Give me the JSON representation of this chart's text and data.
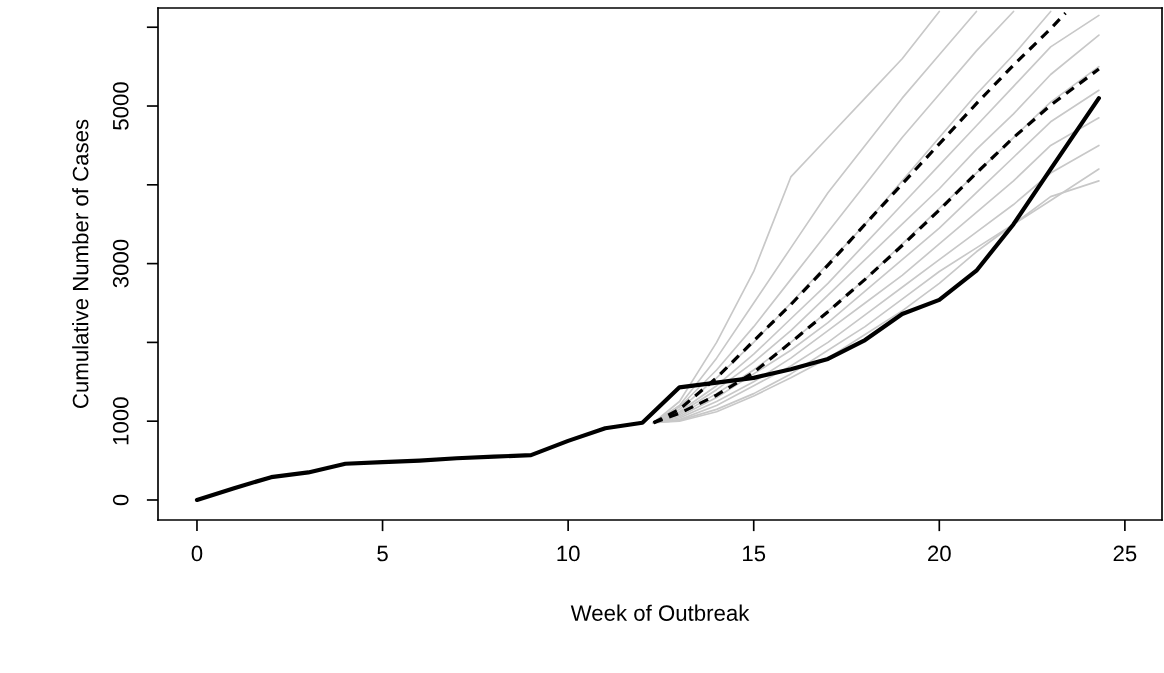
{
  "chart_data": {
    "type": "line",
    "xlabel": "Week of Outbreak",
    "ylabel": "Cumulative Number of Cases",
    "xlim": [
      -1.05,
      26.0
    ],
    "ylim": [
      -254,
      6244
    ],
    "xticks": [
      0,
      5,
      10,
      15,
      20,
      25
    ],
    "yticks": [
      0,
      1000,
      {
        "value": 2000,
        "label": null
      },
      3000,
      {
        "value": 4000,
        "label": null
      },
      5000,
      {
        "value": 6000,
        "label": null
      }
    ],
    "grid": false,
    "marker": "none",
    "series": [
      {
        "color": "#c8c8c8",
        "line_style": "solid",
        "x": [
          12.3,
          13,
          14,
          15,
          16,
          17,
          18,
          19,
          20
        ],
        "values": [
          980,
          1250,
          2000,
          2900,
          4100,
          4600,
          5100,
          5600,
          6200
        ]
      },
      {
        "color": "#c8c8c8",
        "line_style": "solid",
        "x": [
          12.3,
          13,
          14,
          15,
          16,
          17,
          18,
          19,
          20,
          21
        ],
        "values": [
          980,
          1200,
          1800,
          2500,
          3200,
          3900,
          4500,
          5100,
          5650,
          6200
        ]
      },
      {
        "color": "#c8c8c8",
        "line_style": "solid",
        "x": [
          12.3,
          13,
          14,
          15,
          16,
          17,
          18,
          19,
          20,
          21,
          22
        ],
        "values": [
          980,
          1180,
          1650,
          2200,
          2800,
          3400,
          4000,
          4600,
          5150,
          5700,
          6200
        ]
      },
      {
        "color": "#c8c8c8",
        "line_style": "solid",
        "x": [
          12.3,
          13,
          14,
          15,
          16,
          17,
          18,
          19,
          20,
          21,
          22,
          23
        ],
        "values": [
          980,
          1150,
          1550,
          2000,
          2500,
          3000,
          3500,
          4050,
          4600,
          5150,
          5650,
          6200
        ]
      },
      {
        "color": "#c8c8c8",
        "line_style": "solid",
        "x": [
          12.3,
          13,
          14,
          15,
          16,
          17,
          18,
          19,
          20,
          21,
          22,
          23,
          24.3
        ],
        "values": [
          980,
          1120,
          1450,
          1850,
          2300,
          2750,
          3250,
          3750,
          4250,
          4750,
          5250,
          5750,
          6150
        ]
      },
      {
        "color": "#c8c8c8",
        "line_style": "solid",
        "x": [
          12.3,
          13,
          14,
          15,
          16,
          17,
          18,
          19,
          20,
          21,
          22,
          23,
          24.3
        ],
        "values": [
          980,
          1100,
          1400,
          1750,
          2150,
          2600,
          3050,
          3500,
          3950,
          4450,
          4900,
          5400,
          5900
        ]
      },
      {
        "color": "#c8c8c8",
        "line_style": "solid",
        "x": [
          12.3,
          13,
          14,
          15,
          16,
          17,
          18,
          19,
          20,
          21,
          22,
          23,
          24.3
        ],
        "values": [
          980,
          1080,
          1350,
          1650,
          2000,
          2400,
          2800,
          3250,
          3700,
          4150,
          4600,
          5050,
          5500
        ]
      },
      {
        "color": "#c8c8c8",
        "line_style": "solid",
        "x": [
          12.3,
          13,
          14,
          15,
          16,
          17,
          18,
          19,
          20,
          21,
          22,
          23,
          24.3
        ],
        "values": [
          980,
          1060,
          1300,
          1600,
          1900,
          2250,
          2650,
          3050,
          3450,
          3900,
          4350,
          4800,
          5200
        ]
      },
      {
        "color": "#c8c8c8",
        "line_style": "solid",
        "x": [
          12.3,
          13,
          14,
          15,
          16,
          17,
          18,
          19,
          20,
          21,
          22,
          23,
          24.3
        ],
        "values": [
          980,
          1040,
          1250,
          1500,
          1800,
          2150,
          2500,
          2850,
          3250,
          3650,
          4050,
          4500,
          4850
        ]
      },
      {
        "color": "#c8c8c8",
        "line_style": "solid",
        "x": [
          12.3,
          13,
          14,
          15,
          16,
          17,
          18,
          19,
          20,
          21,
          22,
          23,
          24.3
        ],
        "values": [
          980,
          1020,
          1200,
          1450,
          1700,
          2000,
          2350,
          2700,
          3050,
          3400,
          3750,
          4150,
          4500
        ]
      },
      {
        "color": "#c8c8c8",
        "line_style": "solid",
        "x": [
          12.3,
          13,
          14,
          15,
          16,
          17,
          18,
          19,
          20,
          21,
          22,
          23,
          24.3
        ],
        "values": [
          980,
          1010,
          1150,
          1350,
          1600,
          1900,
          2200,
          2550,
          2900,
          3200,
          3500,
          3850,
          4050
        ]
      },
      {
        "color": "#c8c8c8",
        "line_style": "solid",
        "x": [
          12.3,
          13,
          14,
          15,
          16,
          17,
          18,
          19,
          20,
          21,
          22,
          23,
          24.3
        ],
        "values": [
          980,
          1000,
          1120,
          1320,
          1550,
          1800,
          2100,
          2400,
          2750,
          3150,
          3500,
          3800,
          4200
        ]
      },
      {
        "color": "#000000",
        "line_style": "dashed",
        "x": [
          12.3,
          13,
          14,
          15,
          16,
          17,
          18,
          19,
          20,
          21,
          22,
          23,
          23.4
        ],
        "values": [
          980,
          1150,
          1550,
          2020,
          2480,
          2980,
          3500,
          4010,
          4520,
          5030,
          5520,
          5980,
          6180
        ]
      },
      {
        "color": "#000000",
        "line_style": "dashed",
        "x": [
          12.3,
          13,
          14,
          15,
          16,
          17,
          18,
          19,
          20,
          21,
          22,
          23,
          24.3
        ],
        "values": [
          980,
          1100,
          1330,
          1620,
          2000,
          2390,
          2800,
          3230,
          3680,
          4150,
          4600,
          5010,
          5470
        ]
      },
      {
        "color": "#000000",
        "line_style": "solid",
        "x": [
          0,
          1,
          2,
          3,
          4,
          5,
          6,
          7,
          8,
          9,
          10,
          11,
          12,
          13,
          14,
          15,
          16,
          17,
          18,
          19,
          20,
          21,
          22,
          23,
          24.3
        ],
        "values": [
          0,
          150,
          290,
          350,
          460,
          480,
          500,
          530,
          550,
          570,
          750,
          910,
          980,
          1430,
          1490,
          1550,
          1660,
          1790,
          2030,
          2360,
          2540,
          2910,
          3500,
          4200,
          5100
        ]
      }
    ]
  }
}
